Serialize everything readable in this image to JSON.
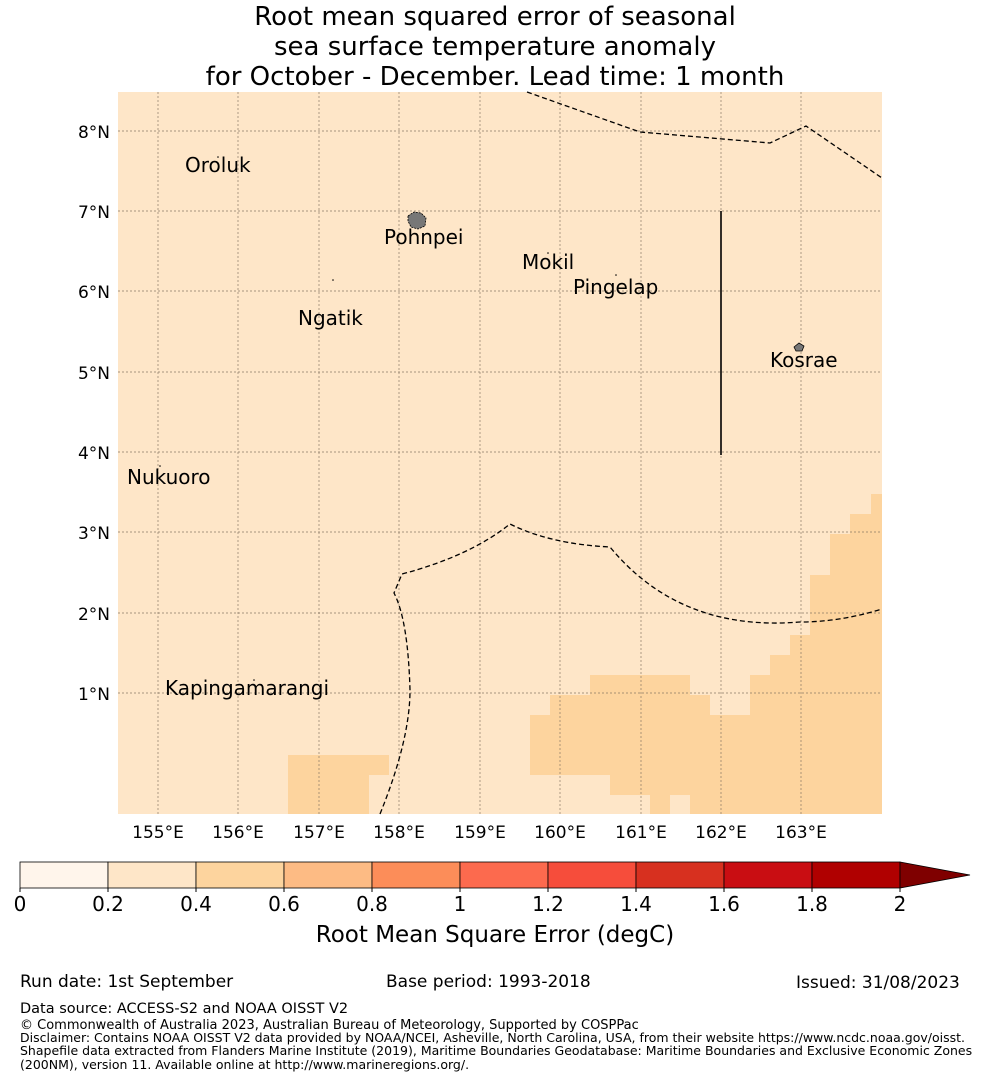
{
  "title": {
    "line1": "Root mean squared error of seasonal",
    "line2": "sea surface temperature anomaly",
    "line3": "for October - December. Lead time: 1 month"
  },
  "map": {
    "lon_range": [
      154.5,
      164.0
    ],
    "lat_range": [
      -0.25,
      8.5
    ],
    "lat_ticks": [
      "8°N",
      "7°N",
      "6°N",
      "5°N",
      "4°N",
      "3°N",
      "2°N",
      "1°N"
    ],
    "lon_ticks": [
      "155°E",
      "156°E",
      "157°E",
      "158°E",
      "159°E",
      "160°E",
      "161°E",
      "162°E",
      "163°E"
    ],
    "background_color": "#fee6c8",
    "elevated_color": "#fdd49e",
    "islands": [
      {
        "name": "Oroluk",
        "lon": 155.3,
        "lat": 7.55
      },
      {
        "name": "Pohnpei",
        "lon": 158.2,
        "lat": 6.88
      },
      {
        "name": "Mokil",
        "lon": 159.8,
        "lat": 6.68
      },
      {
        "name": "Pingelap",
        "lon": 160.7,
        "lat": 6.22
      },
      {
        "name": "Ngatik",
        "lon": 157.15,
        "lat": 5.8
      },
      {
        "name": "Kosrae",
        "lon": 162.98,
        "lat": 5.32
      },
      {
        "name": "Nukuoro",
        "lon": 154.95,
        "lat": 3.85
      },
      {
        "name": "Kapingamarangi",
        "lon": 154.95,
        "lat": 1.07
      }
    ]
  },
  "colorbar": {
    "ticks": [
      "0",
      "0.2",
      "0.4",
      "0.6",
      "0.8",
      "1",
      "1.2",
      "1.4",
      "1.6",
      "1.8",
      "2"
    ],
    "colors": [
      "#fff5eb",
      "#fee6c8",
      "#fdd49e",
      "#fdbb84",
      "#fc8d59",
      "#fc6a4e",
      "#f64d3b",
      "#d7301f",
      "#c90d12",
      "#b00000"
    ],
    "extend_color": "#7f0000",
    "label": "Root Mean Square Error (degC)"
  },
  "footer": {
    "run_date": "Run date: 1st September",
    "base_period": "Base period: 1993-2018",
    "issued": "Issued: 31/08/2023",
    "data_source": "Data source: ACCESS-S2 and NOAA OISST V2",
    "copyright": "© Commonwealth of Australia 2023, Australian Bureau of Meteorology, Supported by COSPPac",
    "disclaimer1": "Disclaimer: Contains NOAA OISST V2 data provided by NOAA/NCEI, Asheville, North Carolina, USA, from their website https://www.ncdc.noaa.gov/oisst.",
    "disclaimer2": "Shapefile data extracted from Flanders Marine Institute (2019), Maritime Boundaries Geodatabase: Maritime Boundaries and Exclusive Economic Zones",
    "disclaimer3": "(200NM), version 11. Available online at http://www.marineregions.org/."
  }
}
